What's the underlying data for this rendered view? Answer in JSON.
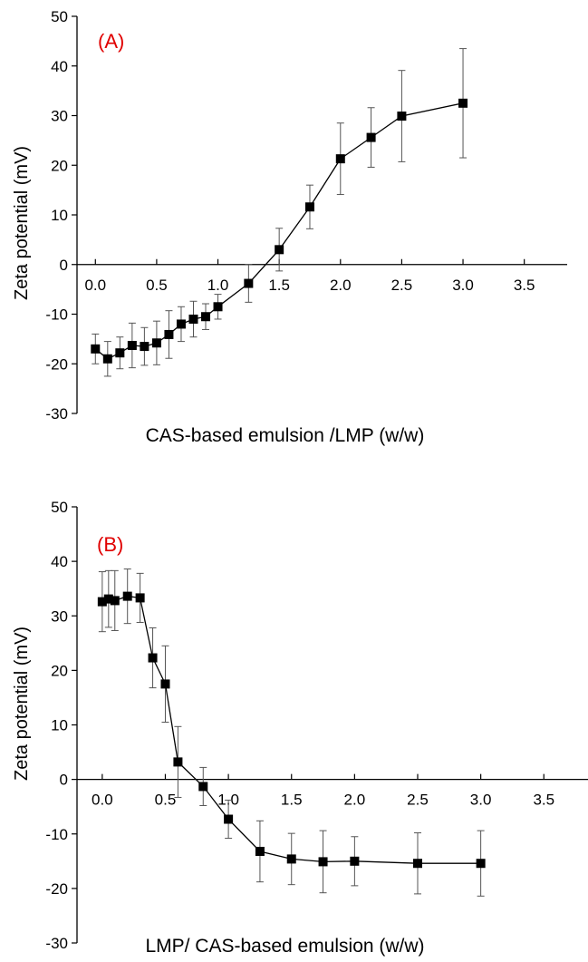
{
  "chart_data": [
    {
      "type": "line",
      "panel_label": "(A)",
      "panel_label_color": "#e00000",
      "xlabel": "CAS-based emulsion /LMP (w/w)",
      "ylabel": "Zeta potential (mV)",
      "xlim": [
        -0.15,
        3.85
      ],
      "ylim": [
        -30,
        50
      ],
      "x_ticks": [
        "0.0",
        "0.5",
        "1.0",
        "1.5",
        "2.0",
        "2.5",
        "3.0",
        "3.5"
      ],
      "y_ticks": [
        "-30",
        "-20",
        "-10",
        "0",
        "10",
        "20",
        "30",
        "40",
        "50"
      ],
      "x_axis_at_y": 0,
      "grid": false,
      "marker": "square",
      "series": [
        {
          "x": [
            0.0,
            0.1,
            0.2,
            0.3,
            0.4,
            0.5,
            0.6,
            0.7,
            0.8,
            0.9,
            1.0,
            1.25,
            1.5,
            1.75,
            2.0,
            2.25,
            2.5,
            3.0
          ],
          "y": [
            -17.0,
            -19.0,
            -17.8,
            -16.3,
            -16.5,
            -15.8,
            -14.1,
            -12.0,
            -11.0,
            -10.5,
            -8.5,
            -3.8,
            3.0,
            11.6,
            21.3,
            25.6,
            29.9,
            32.5
          ],
          "err": [
            3.0,
            3.5,
            3.2,
            4.5,
            3.8,
            4.4,
            4.8,
            3.5,
            3.6,
            2.6,
            2.5,
            3.8,
            4.3,
            4.4,
            7.2,
            6.0,
            9.2,
            11.0
          ]
        }
      ]
    },
    {
      "type": "line",
      "panel_label": "(B)",
      "panel_label_color": "#e00000",
      "xlabel": "LMP/ CAS-based emulsion (w/w)",
      "ylabel": "Zeta potential (mV)",
      "xlim": [
        -0.2,
        3.85
      ],
      "ylim": [
        -30,
        50
      ],
      "x_ticks": [
        "0.0",
        "0.5",
        "1.0",
        "1.5",
        "2.0",
        "2.5",
        "3.0",
        "3.5"
      ],
      "y_ticks": [
        "-30",
        "-20",
        "-10",
        "0",
        "10",
        "20",
        "30",
        "40",
        "50"
      ],
      "x_axis_at_y": 0,
      "grid": false,
      "marker": "square",
      "series": [
        {
          "x": [
            0.0,
            0.05,
            0.1,
            0.2,
            0.3,
            0.4,
            0.5,
            0.6,
            0.8,
            1.0,
            1.25,
            1.5,
            1.75,
            2.0,
            2.5,
            3.0
          ],
          "y": [
            32.6,
            33.1,
            32.8,
            33.6,
            33.3,
            22.3,
            17.5,
            3.2,
            -1.3,
            -7.3,
            -13.2,
            -14.6,
            -15.1,
            -15.0,
            -15.4,
            -15.4
          ],
          "err": [
            5.5,
            5.2,
            5.5,
            5.0,
            4.5,
            5.5,
            7.0,
            6.5,
            3.5,
            3.5,
            5.6,
            4.7,
            5.7,
            4.5,
            5.6,
            6.0
          ]
        }
      ]
    }
  ]
}
